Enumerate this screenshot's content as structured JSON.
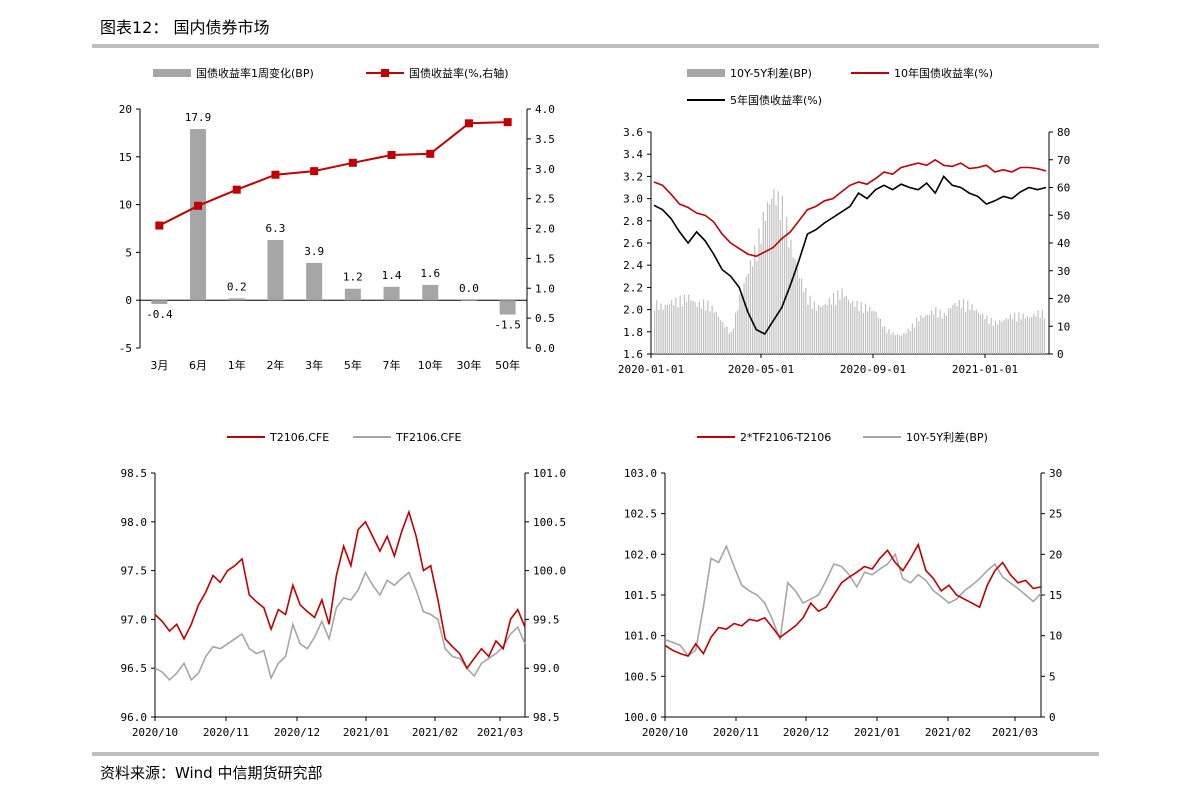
{
  "page": {
    "title": "图表12： 国内债券市场",
    "footer": "资料来源：Wind 中信期货研究部"
  },
  "chart_data": [
    {
      "type": "bar+line",
      "categories": [
        "3月",
        "6月",
        "1年",
        "2年",
        "3年",
        "5年",
        "7年",
        "10年",
        "30年",
        "50年"
      ],
      "series": [
        {
          "name": "国债收益率1周变化(BP)",
          "type": "bar",
          "axis": "left",
          "color": "#a6a6a6",
          "values": [
            -0.4,
            17.9,
            0.2,
            6.3,
            3.9,
            1.2,
            1.4,
            1.6,
            0.0,
            -1.5
          ],
          "labels": [
            "-0.4",
            "17.9",
            "0.2",
            "6.3",
            "3.9",
            "1.2",
            "1.4",
            "1.6",
            "0.0",
            "-1.5"
          ]
        },
        {
          "name": "国债收益率(%,右轴)",
          "type": "line",
          "axis": "right",
          "color": "#c00000",
          "values": [
            2.05,
            2.38,
            2.65,
            2.9,
            2.96,
            3.1,
            3.23,
            3.25,
            3.76,
            3.78
          ]
        }
      ],
      "yleft": {
        "min": -5,
        "max": 20,
        "ticks": [
          "-5",
          "0",
          "5",
          "10",
          "15",
          "20"
        ]
      },
      "yright": {
        "min": 0,
        "max": 4,
        "ticks": [
          "0.0",
          "0.5",
          "1.0",
          "1.5",
          "2.0",
          "2.5",
          "3.0",
          "3.5",
          "4.0"
        ]
      }
    },
    {
      "type": "line+bar",
      "x_ticks": [
        "2020-01-01",
        "2020-05-01",
        "2020-09-01",
        "2021-01-01"
      ],
      "series": [
        {
          "name": "10Y-5Y利差(BP)",
          "type": "bar",
          "axis": "right",
          "color": "#a6a6a6"
        },
        {
          "name": "10年国债收益率(%)",
          "type": "line",
          "axis": "left",
          "color": "#c00000",
          "values": [
            3.15,
            3.12,
            3.04,
            2.95,
            2.92,
            2.87,
            2.85,
            2.79,
            2.68,
            2.6,
            2.55,
            2.5,
            2.48,
            2.52,
            2.56,
            2.64,
            2.7,
            2.8,
            2.9,
            2.93,
            2.98,
            3.0,
            3.06,
            3.12,
            3.15,
            3.13,
            3.18,
            3.24,
            3.22,
            3.28,
            3.3,
            3.32,
            3.3,
            3.35,
            3.3,
            3.29,
            3.32,
            3.27,
            3.28,
            3.3,
            3.24,
            3.26,
            3.24,
            3.28,
            3.28,
            3.27,
            3.25
          ]
        },
        {
          "name": "5年国债收益率(%)",
          "type": "line",
          "axis": "left",
          "color": "#000000",
          "values": [
            2.94,
            2.9,
            2.82,
            2.7,
            2.6,
            2.7,
            2.62,
            2.5,
            2.36,
            2.3,
            2.2,
            1.98,
            1.82,
            1.78,
            1.9,
            2.02,
            2.22,
            2.44,
            2.68,
            2.72,
            2.78,
            2.83,
            2.88,
            2.93,
            3.05,
            3.0,
            3.08,
            3.12,
            3.08,
            3.13,
            3.1,
            3.08,
            3.14,
            3.05,
            3.2,
            3.12,
            3.1,
            3.05,
            3.02,
            2.95,
            2.98,
            3.02,
            3.0,
            3.06,
            3.1,
            3.08,
            3.1
          ]
        }
      ],
      "spread_values": [
        20,
        18,
        20,
        21,
        22,
        19,
        20,
        17,
        12,
        8,
        22,
        32,
        42,
        55,
        62,
        57,
        42,
        30,
        22,
        18,
        19,
        22,
        24,
        20,
        19,
        18,
        16,
        10,
        8,
        7,
        10,
        14,
        15,
        17,
        15,
        19,
        20,
        19,
        16,
        14,
        12,
        13,
        15,
        15,
        14,
        16,
        16
      ],
      "yleft": {
        "min": 1.6,
        "max": 3.6,
        "ticks": [
          "1.6",
          "1.8",
          "2.0",
          "2.2",
          "2.4",
          "2.6",
          "2.8",
          "3.0",
          "3.2",
          "3.4",
          "3.6"
        ]
      },
      "yright": {
        "min": 0,
        "max": 80,
        "ticks": [
          "0",
          "10",
          "20",
          "30",
          "40",
          "50",
          "60",
          "70",
          "80"
        ]
      }
    },
    {
      "type": "line",
      "x_ticks": [
        "2020/10",
        "2020/11",
        "2020/12",
        "2021/01",
        "2021/02",
        "2021/03"
      ],
      "series": [
        {
          "name": "T2106.CFE",
          "axis": "left",
          "color": "#c00000",
          "values": [
            97.05,
            96.98,
            96.88,
            96.95,
            96.8,
            96.95,
            97.15,
            97.28,
            97.45,
            97.38,
            97.5,
            97.55,
            97.62,
            97.25,
            97.18,
            97.12,
            96.9,
            97.1,
            97.05,
            97.35,
            97.15,
            97.08,
            97.02,
            97.2,
            96.95,
            97.45,
            97.75,
            97.55,
            97.92,
            98.0,
            97.85,
            97.7,
            97.85,
            97.65,
            97.9,
            98.1,
            97.85,
            97.5,
            97.55,
            97.2,
            96.8,
            96.72,
            96.65,
            96.5,
            96.6,
            96.7,
            96.62,
            96.78,
            96.7,
            97.0,
            97.1,
            96.92
          ]
        },
        {
          "name": "TF2106.CFE",
          "axis": "right",
          "color": "#a6a6a6",
          "values": [
            99.0,
            98.96,
            98.88,
            98.95,
            99.05,
            98.88,
            98.95,
            99.12,
            99.22,
            99.2,
            99.25,
            99.3,
            99.35,
            99.2,
            99.15,
            99.18,
            98.9,
            99.05,
            99.12,
            99.45,
            99.25,
            99.2,
            99.32,
            99.48,
            99.3,
            99.62,
            99.72,
            99.7,
            99.8,
            99.98,
            99.85,
            99.75,
            99.9,
            99.85,
            99.92,
            99.98,
            99.8,
            99.58,
            99.55,
            99.5,
            99.2,
            99.12,
            99.1,
            99.0,
            98.92,
            99.05,
            99.1,
            99.15,
            99.22,
            99.35,
            99.42,
            99.25
          ]
        }
      ],
      "yleft": {
        "min": 96.0,
        "max": 98.5,
        "ticks": [
          "96.0",
          "96.5",
          "97.0",
          "97.5",
          "98.0",
          "98.5"
        ]
      },
      "yright": {
        "min": 98.5,
        "max": 101.0,
        "ticks": [
          "98.5",
          "99.0",
          "99.5",
          "100.0",
          "100.5",
          "101.0"
        ]
      }
    },
    {
      "type": "line",
      "x_ticks": [
        "2020/10",
        "2020/11",
        "2020/12",
        "2021/01",
        "2021/02",
        "2021/03"
      ],
      "series": [
        {
          "name": "2*TF2106-T2106",
          "axis": "left",
          "color": "#c00000",
          "values": [
            100.88,
            100.82,
            100.78,
            100.75,
            100.9,
            100.78,
            100.98,
            101.1,
            101.08,
            101.15,
            101.12,
            101.2,
            101.18,
            101.22,
            101.1,
            100.98,
            101.05,
            101.12,
            101.22,
            101.4,
            101.3,
            101.35,
            101.5,
            101.65,
            101.72,
            101.78,
            101.85,
            101.82,
            101.95,
            102.05,
            101.9,
            101.8,
            101.95,
            102.12,
            101.8,
            101.7,
            101.55,
            101.62,
            101.5,
            101.45,
            101.4,
            101.35,
            101.62,
            101.8,
            101.9,
            101.75,
            101.65,
            101.68,
            101.58,
            101.6
          ]
        },
        {
          "name": "10Y-5Y利差(BP)",
          "axis": "right",
          "color": "#a6a6a6",
          "values": [
            9.5,
            9.2,
            8.8,
            7.5,
            8.2,
            13.5,
            19.5,
            19.0,
            21.0,
            18.5,
            16.2,
            15.5,
            15.0,
            14.0,
            12.0,
            9.5,
            16.5,
            15.5,
            14.0,
            14.5,
            15.0,
            16.8,
            18.8,
            18.5,
            17.5,
            16.0,
            17.8,
            17.5,
            18.2,
            18.8,
            20.0,
            17.0,
            16.5,
            17.5,
            16.8,
            15.5,
            14.8,
            14.0,
            14.5,
            15.5,
            16.2,
            17.0,
            18.0,
            18.8,
            17.2,
            16.5,
            15.8,
            15.0,
            14.2,
            15.2
          ]
        }
      ],
      "yleft": {
        "min": 100.0,
        "max": 103.0,
        "ticks": [
          "100.0",
          "100.5",
          "101.0",
          "101.5",
          "102.0",
          "102.5",
          "103.0"
        ]
      },
      "yright": {
        "min": 0,
        "max": 30,
        "ticks": [
          "0",
          "5",
          "10",
          "15",
          "20",
          "25",
          "30"
        ]
      }
    }
  ]
}
